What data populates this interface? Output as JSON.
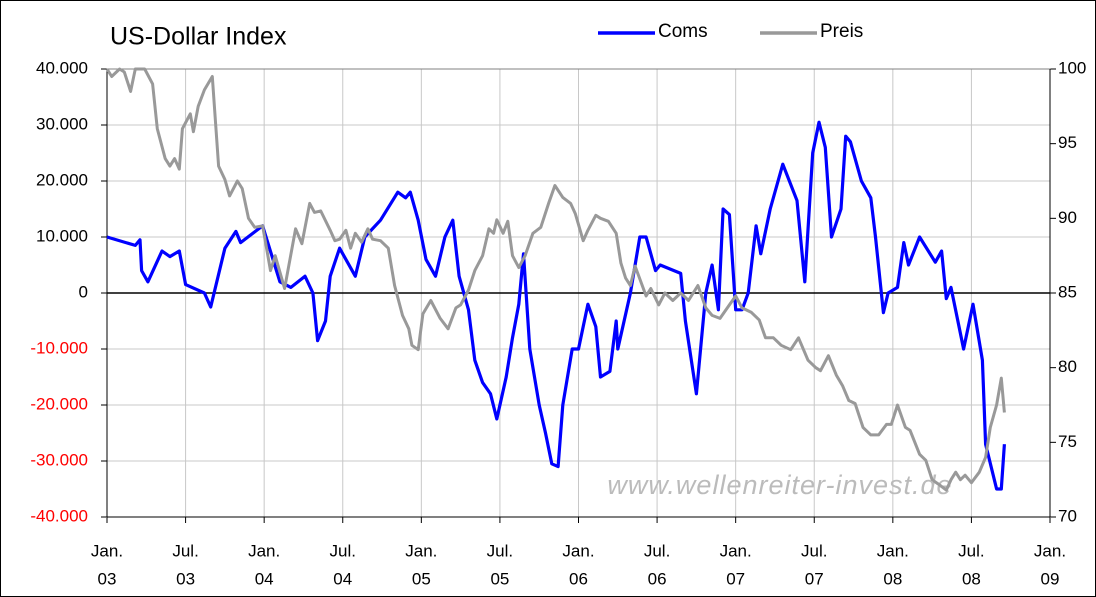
{
  "chart_data": {
    "type": "line",
    "title": "US-Dollar Index",
    "watermark": "www.wellenreiter-invest.de",
    "xlim": [
      2003,
      2009
    ],
    "xticks": [
      {
        "value": 2003,
        "label": [
          "Jan.",
          "03"
        ]
      },
      {
        "value": 2003.5,
        "label": [
          "Jul.",
          "03"
        ]
      },
      {
        "value": 2004,
        "label": [
          "Jan.",
          "04"
        ]
      },
      {
        "value": 2004.5,
        "label": [
          "Jul.",
          "04"
        ]
      },
      {
        "value": 2005,
        "label": [
          "Jan.",
          "05"
        ]
      },
      {
        "value": 2005.5,
        "label": [
          "Jul.",
          "05"
        ]
      },
      {
        "value": 2006,
        "label": [
          "Jan.",
          "06"
        ]
      },
      {
        "value": 2006.5,
        "label": [
          "Jul.",
          "06"
        ]
      },
      {
        "value": 2007,
        "label": [
          "Jan.",
          "07"
        ]
      },
      {
        "value": 2007.5,
        "label": [
          "Jul.",
          "07"
        ]
      },
      {
        "value": 2008,
        "label": [
          "Jan.",
          "08"
        ]
      },
      {
        "value": 2008.5,
        "label": [
          "Jul.",
          "08"
        ]
      },
      {
        "value": 2009,
        "label": [
          "Jan.",
          "09"
        ]
      }
    ],
    "ylim": [
      -40000,
      40000
    ],
    "yticks": [
      {
        "value": -40000,
        "label": "-40.000"
      },
      {
        "value": -30000,
        "label": "-30.000"
      },
      {
        "value": -20000,
        "label": "-20.000"
      },
      {
        "value": -10000,
        "label": "-10.000"
      },
      0,
      {
        "value": 10000,
        "label": "10.000"
      },
      {
        "value": 20000,
        "label": "20.000"
      },
      {
        "value": 30000,
        "label": "30.000"
      },
      {
        "value": 40000,
        "label": "40.000"
      }
    ],
    "negative_tick_color": "#ff0000",
    "y2lim": [
      70,
      100
    ],
    "y2ticks": [
      70,
      75,
      80,
      85,
      90,
      95,
      100
    ],
    "grid": true,
    "legend": "top",
    "series": [
      {
        "name": "Coms",
        "color": "#0000ff",
        "x": [
          2003.0,
          2003.18,
          2003.21,
          2003.22,
          2003.26,
          2003.35,
          2003.4,
          2003.46,
          2003.5,
          2003.62,
          2003.66,
          2003.75,
          2003.82,
          2003.85,
          2003.99,
          2004.1,
          2004.17,
          2004.26,
          2004.31,
          2004.34,
          2004.39,
          2004.42,
          2004.48,
          2004.58,
          2004.64,
          2004.74,
          2004.85,
          2004.9,
          2004.93,
          2004.98,
          2005.03,
          2005.09,
          2005.15,
          2005.2,
          2005.24,
          2005.3,
          2005.34,
          2005.39,
          2005.44,
          2005.48,
          2005.54,
          2005.58,
          2005.62,
          2005.65,
          2005.69,
          2005.75,
          2005.79,
          2005.83,
          2005.87,
          2005.9,
          2005.96,
          2006.0,
          2006.06,
          2006.11,
          2006.14,
          2006.2,
          2006.24,
          2006.25,
          2006.33,
          2006.39,
          2006.43,
          2006.49,
          2006.52,
          2006.65,
          2006.68,
          2006.75,
          2006.81,
          2006.85,
          2006.89,
          2006.92,
          2006.96,
          2007.0,
          2007.04,
          2007.08,
          2007.13,
          2007.16,
          2007.22,
          2007.3,
          2007.39,
          2007.44,
          2007.49,
          2007.53,
          2007.57,
          2007.61,
          2007.67,
          2007.7,
          2007.73,
          2007.8,
          2007.86,
          2007.89,
          2007.94,
          2007.97,
          2008.03,
          2008.07,
          2008.1,
          2008.17,
          2008.27,
          2008.31,
          2008.34,
          2008.37,
          2008.45,
          2008.51,
          2008.57,
          2008.59,
          2008.66,
          2008.69,
          2008.71
        ],
        "values": [
          10000,
          8500,
          9500,
          4000,
          2000,
          7500,
          6500,
          7500,
          1500,
          0,
          -2500,
          8000,
          11000,
          9000,
          12000,
          2000,
          1000,
          3000,
          0,
          -8500,
          -5000,
          3000,
          8000,
          3000,
          10000,
          13000,
          18000,
          17000,
          18000,
          13000,
          6000,
          3000,
          10000,
          13000,
          3000,
          -3000,
          -12000,
          -16000,
          -18000,
          -22500,
          -15000,
          -8000,
          -2000,
          7000,
          -10000,
          -20000,
          -25000,
          -30500,
          -31000,
          -20000,
          -10000,
          -10000,
          -2000,
          -6000,
          -15000,
          -14000,
          -5000,
          -10000,
          0,
          10000,
          10000,
          4000,
          5000,
          3500,
          -5000,
          -18000,
          0,
          5000,
          -3000,
          15000,
          14000,
          -3000,
          -3000,
          0,
          12000,
          7000,
          15000,
          23000,
          16500,
          2000,
          25000,
          30500,
          26000,
          10000,
          15000,
          28000,
          27000,
          20000,
          17000,
          10000,
          -3500,
          0,
          1000,
          9000,
          5000,
          10000,
          5500,
          7500,
          -1000,
          1000,
          -10000,
          -2000,
          -12000,
          -27000,
          -35000,
          -35000,
          -27000
        ]
      },
      {
        "name": "Preis",
        "color": "#999999",
        "axis": "y2",
        "x": [
          2003.0,
          2003.03,
          2003.08,
          2003.11,
          2003.15,
          2003.18,
          2003.24,
          2003.29,
          2003.32,
          2003.37,
          2003.4,
          2003.43,
          2003.46,
          2003.48,
          2003.53,
          2003.55,
          2003.58,
          2003.62,
          2003.67,
          2003.71,
          2003.75,
          2003.78,
          2003.83,
          2003.86,
          2003.9,
          2003.94,
          2003.99,
          2004.04,
          2004.07,
          2004.13,
          2004.2,
          2004.24,
          2004.29,
          2004.32,
          2004.36,
          2004.42,
          2004.45,
          2004.48,
          2004.52,
          2004.55,
          2004.58,
          2004.62,
          2004.66,
          2004.69,
          2004.74,
          2004.79,
          2004.83,
          2004.88,
          2004.92,
          2004.94,
          2004.98,
          2005.01,
          2005.06,
          2005.12,
          2005.17,
          2005.22,
          2005.25,
          2005.3,
          2005.34,
          2005.39,
          2005.43,
          2005.46,
          2005.48,
          2005.52,
          2005.55,
          2005.58,
          2005.62,
          2005.66,
          2005.71,
          2005.76,
          2005.81,
          2005.85,
          2005.9,
          2005.95,
          2005.98,
          2006.03,
          2006.06,
          2006.11,
          2006.14,
          2006.19,
          2006.24,
          2006.27,
          2006.3,
          2006.33,
          2006.36,
          2006.43,
          2006.46,
          2006.51,
          2006.55,
          2006.6,
          2006.65,
          2006.7,
          2006.76,
          2006.81,
          2006.85,
          2006.9,
          2006.96,
          2007.0,
          2007.04,
          2007.1,
          2007.15,
          2007.19,
          2007.24,
          2007.29,
          2007.35,
          2007.4,
          2007.46,
          2007.51,
          2007.54,
          2007.59,
          2007.64,
          2007.68,
          2007.72,
          2007.76,
          2007.81,
          2007.86,
          2007.91,
          2007.96,
          2007.99,
          2008.03,
          2008.08,
          2008.11,
          2008.17,
          2008.21,
          2008.25,
          2008.29,
          2008.34,
          2008.37,
          2008.4,
          2008.43,
          2008.46,
          2008.5,
          2008.55,
          2008.59,
          2008.62,
          2008.66,
          2008.69,
          2008.71
        ],
        "values": [
          100,
          99.5,
          100,
          99.8,
          98.5,
          100,
          100,
          99,
          96,
          94,
          93.5,
          94,
          93.3,
          96,
          97,
          95.8,
          97.5,
          98.6,
          99.5,
          93.5,
          92.6,
          91.5,
          92.5,
          92,
          90,
          89.4,
          89.5,
          86.5,
          87.5,
          85.3,
          89.3,
          88.3,
          91,
          90.4,
          90.5,
          89.2,
          88.5,
          88.6,
          89.2,
          88,
          89,
          88.4,
          89.3,
          88.6,
          88.5,
          88,
          85.5,
          83.5,
          82.6,
          81.5,
          81.2,
          83.6,
          84.5,
          83.3,
          82.6,
          84,
          84.2,
          85.2,
          86.5,
          87.5,
          89.3,
          89,
          89.9,
          89,
          89.8,
          87.5,
          86.7,
          87.5,
          89,
          89.4,
          91,
          92.2,
          91.4,
          91,
          90.3,
          88.5,
          89.2,
          90.2,
          90,
          89.8,
          89,
          87,
          86,
          85.5,
          86.8,
          84.8,
          85.3,
          84.2,
          85,
          84.5,
          85,
          84.5,
          85.5,
          84,
          83.5,
          83.3,
          84.2,
          84.8,
          84,
          83.7,
          83.2,
          82,
          82,
          81.5,
          81.2,
          82,
          80.5,
          80,
          79.8,
          80.8,
          79.5,
          78.8,
          77.8,
          77.6,
          76,
          75.5,
          75.5,
          76.2,
          76.2,
          77.5,
          76,
          75.8,
          74.2,
          73.8,
          72.5,
          72.2,
          71.8,
          72.5,
          73,
          72.5,
          72.8,
          72.3,
          73,
          74,
          76,
          77.5,
          79.3,
          77
        ]
      }
    ]
  }
}
